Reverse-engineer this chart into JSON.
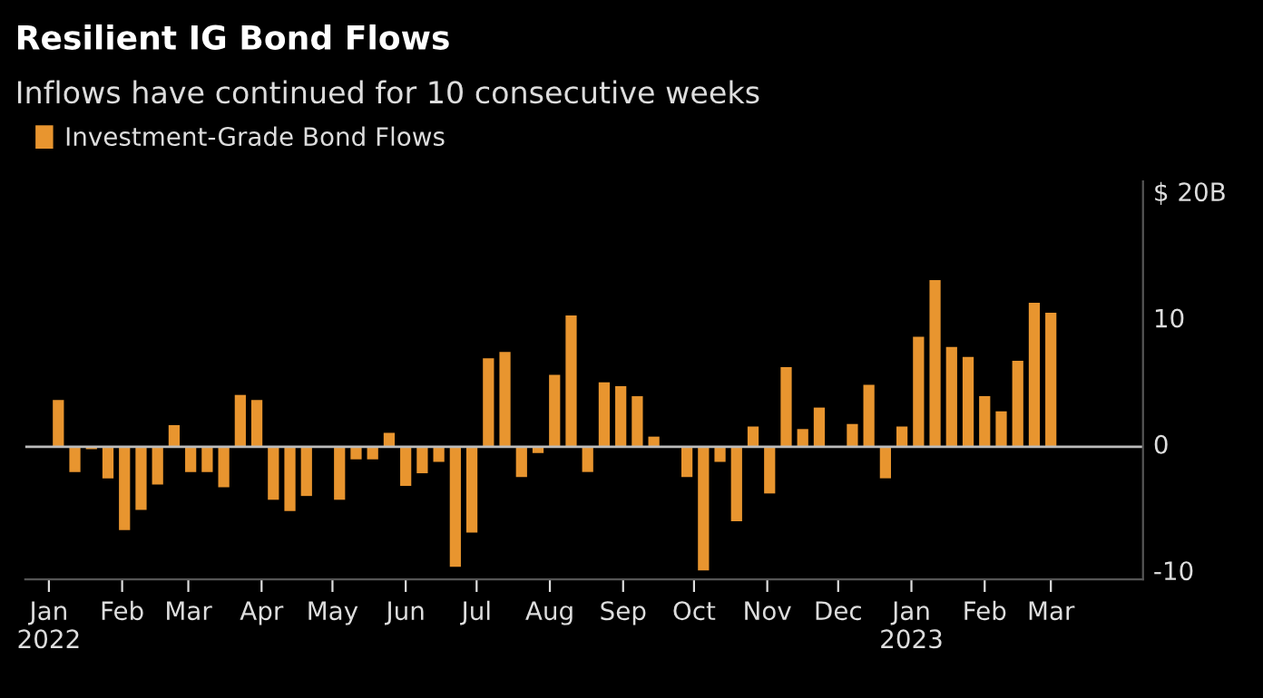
{
  "chart_data": {
    "type": "bar",
    "title": "Resilient IG Bond Flows",
    "subtitle": "Inflows have continued for 10 consecutive weeks",
    "x": [
      "2022-01-05",
      "2022-01-12",
      "2022-01-19",
      "2022-01-26",
      "2022-02-02",
      "2022-02-09",
      "2022-02-16",
      "2022-02-23",
      "2022-03-02",
      "2022-03-09",
      "2022-03-16",
      "2022-03-23",
      "2022-03-30",
      "2022-04-06",
      "2022-04-13",
      "2022-04-20",
      "2022-04-27",
      "2022-05-04",
      "2022-05-11",
      "2022-05-18",
      "2022-05-25",
      "2022-06-01",
      "2022-06-08",
      "2022-06-15",
      "2022-06-22",
      "2022-06-29",
      "2022-07-06",
      "2022-07-13",
      "2022-07-20",
      "2022-07-27",
      "2022-08-03",
      "2022-08-10",
      "2022-08-17",
      "2022-08-24",
      "2022-08-31",
      "2022-09-07",
      "2022-09-14",
      "2022-09-21",
      "2022-09-28",
      "2022-10-05",
      "2022-10-12",
      "2022-10-19",
      "2022-10-26",
      "2022-11-02",
      "2022-11-09",
      "2022-11-16",
      "2022-11-23",
      "2022-11-30",
      "2022-12-07",
      "2022-12-14",
      "2022-12-21",
      "2022-12-28",
      "2023-01-04",
      "2023-01-11",
      "2023-01-18",
      "2023-01-25",
      "2023-02-01",
      "2023-02-08",
      "2023-02-15",
      "2023-02-22",
      "2023-03-01"
    ],
    "series": [
      {
        "name": "Investment-Grade Bond Flows",
        "color": "#e8952f",
        "values": [
          3.7,
          -2.0,
          -0.2,
          -2.5,
          -6.6,
          -5.0,
          -3.0,
          1.7,
          -2.0,
          -2.0,
          -3.2,
          4.1,
          3.7,
          -4.2,
          -5.1,
          -3.9,
          0,
          -4.2,
          -1.0,
          -1.0,
          1.1,
          -3.1,
          -2.1,
          -1.2,
          -9.5,
          -6.8,
          7.0,
          7.5,
          -2.4,
          -0.5,
          5.7,
          10.4,
          -2.0,
          5.1,
          4.8,
          4.0,
          0.8,
          0,
          -2.4,
          -9.8,
          -1.2,
          -5.9,
          1.6,
          -3.7,
          6.3,
          1.4,
          3.1,
          0,
          1.8,
          4.9,
          -2.5,
          1.6,
          8.7,
          13.2,
          7.9,
          7.1,
          4.0,
          2.8,
          6.8,
          11.4,
          10.6
        ]
      }
    ],
    "xlim": [
      "2021-12-22",
      "2023-04-09"
    ],
    "xticks": [
      {
        "value": "2022-01-01",
        "label": "Jan\n2022"
      },
      {
        "value": "2022-02-01",
        "label": "Feb"
      },
      {
        "value": "2022-03-01",
        "label": "Mar"
      },
      {
        "value": "2022-04-01",
        "label": "Apr"
      },
      {
        "value": "2022-05-01",
        "label": "May"
      },
      {
        "value": "2022-06-01",
        "label": "Jun"
      },
      {
        "value": "2022-07-01",
        "label": "Jul"
      },
      {
        "value": "2022-08-01",
        "label": "Aug"
      },
      {
        "value": "2022-09-01",
        "label": "Sep"
      },
      {
        "value": "2022-10-01",
        "label": "Oct"
      },
      {
        "value": "2022-11-01",
        "label": "Nov"
      },
      {
        "value": "2022-12-01",
        "label": "Dec"
      },
      {
        "value": "2023-01-01",
        "label": "Jan\n2023"
      },
      {
        "value": "2023-02-01",
        "label": "Feb"
      },
      {
        "value": "2023-03-01",
        "label": "Mar"
      }
    ],
    "ylim": [
      -10.5,
      21
    ],
    "yticks": [
      -10,
      0,
      10,
      {
        "value": 20,
        "label": "$ 20B"
      }
    ],
    "ref_lines": [
      {
        "axis": "y",
        "value": 0,
        "color": "#bbbbbb"
      }
    ],
    "grid": false,
    "legend": "top left"
  }
}
